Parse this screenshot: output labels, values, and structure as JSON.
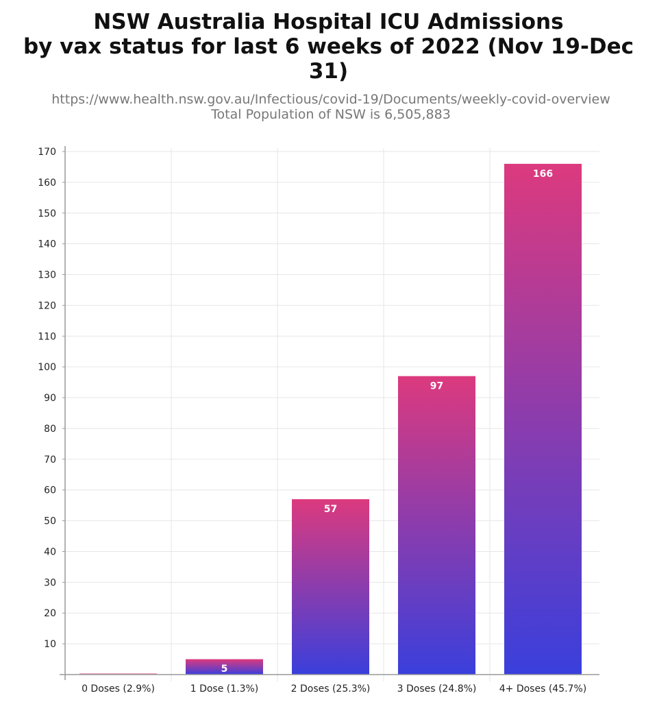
{
  "chart_data": {
    "type": "bar",
    "title": [
      "NSW Australia Hospital ICU Admissions",
      "by vax status for last 6 weeks of 2022 (Nov 19-Dec 31)"
    ],
    "subtitle": [
      "https://www.health.nsw.gov.au/Infectious/covid-19/Documents/weekly-covid-overview",
      "Total Population of NSW is 6,505,883"
    ],
    "categories": [
      "0 Doses (2.9%)",
      "1 Dose (1.3%)",
      "2 Doses (25.3%)",
      "3 Doses (24.8%)",
      "4+ Doses (45.7%)"
    ],
    "values": [
      0,
      5,
      57,
      97,
      166
    ],
    "data_labels": [
      "",
      "5",
      "57",
      "97",
      "166"
    ],
    "xlabel": "",
    "ylabel": "",
    "ylim": [
      0,
      170
    ],
    "yticks": [
      10,
      20,
      30,
      40,
      50,
      60,
      70,
      80,
      90,
      100,
      110,
      120,
      130,
      140,
      150,
      160,
      170
    ],
    "grid": true,
    "colors": {
      "bar_top": "#dc3a7e",
      "bar_bottom": "#3a3fdc"
    }
  }
}
